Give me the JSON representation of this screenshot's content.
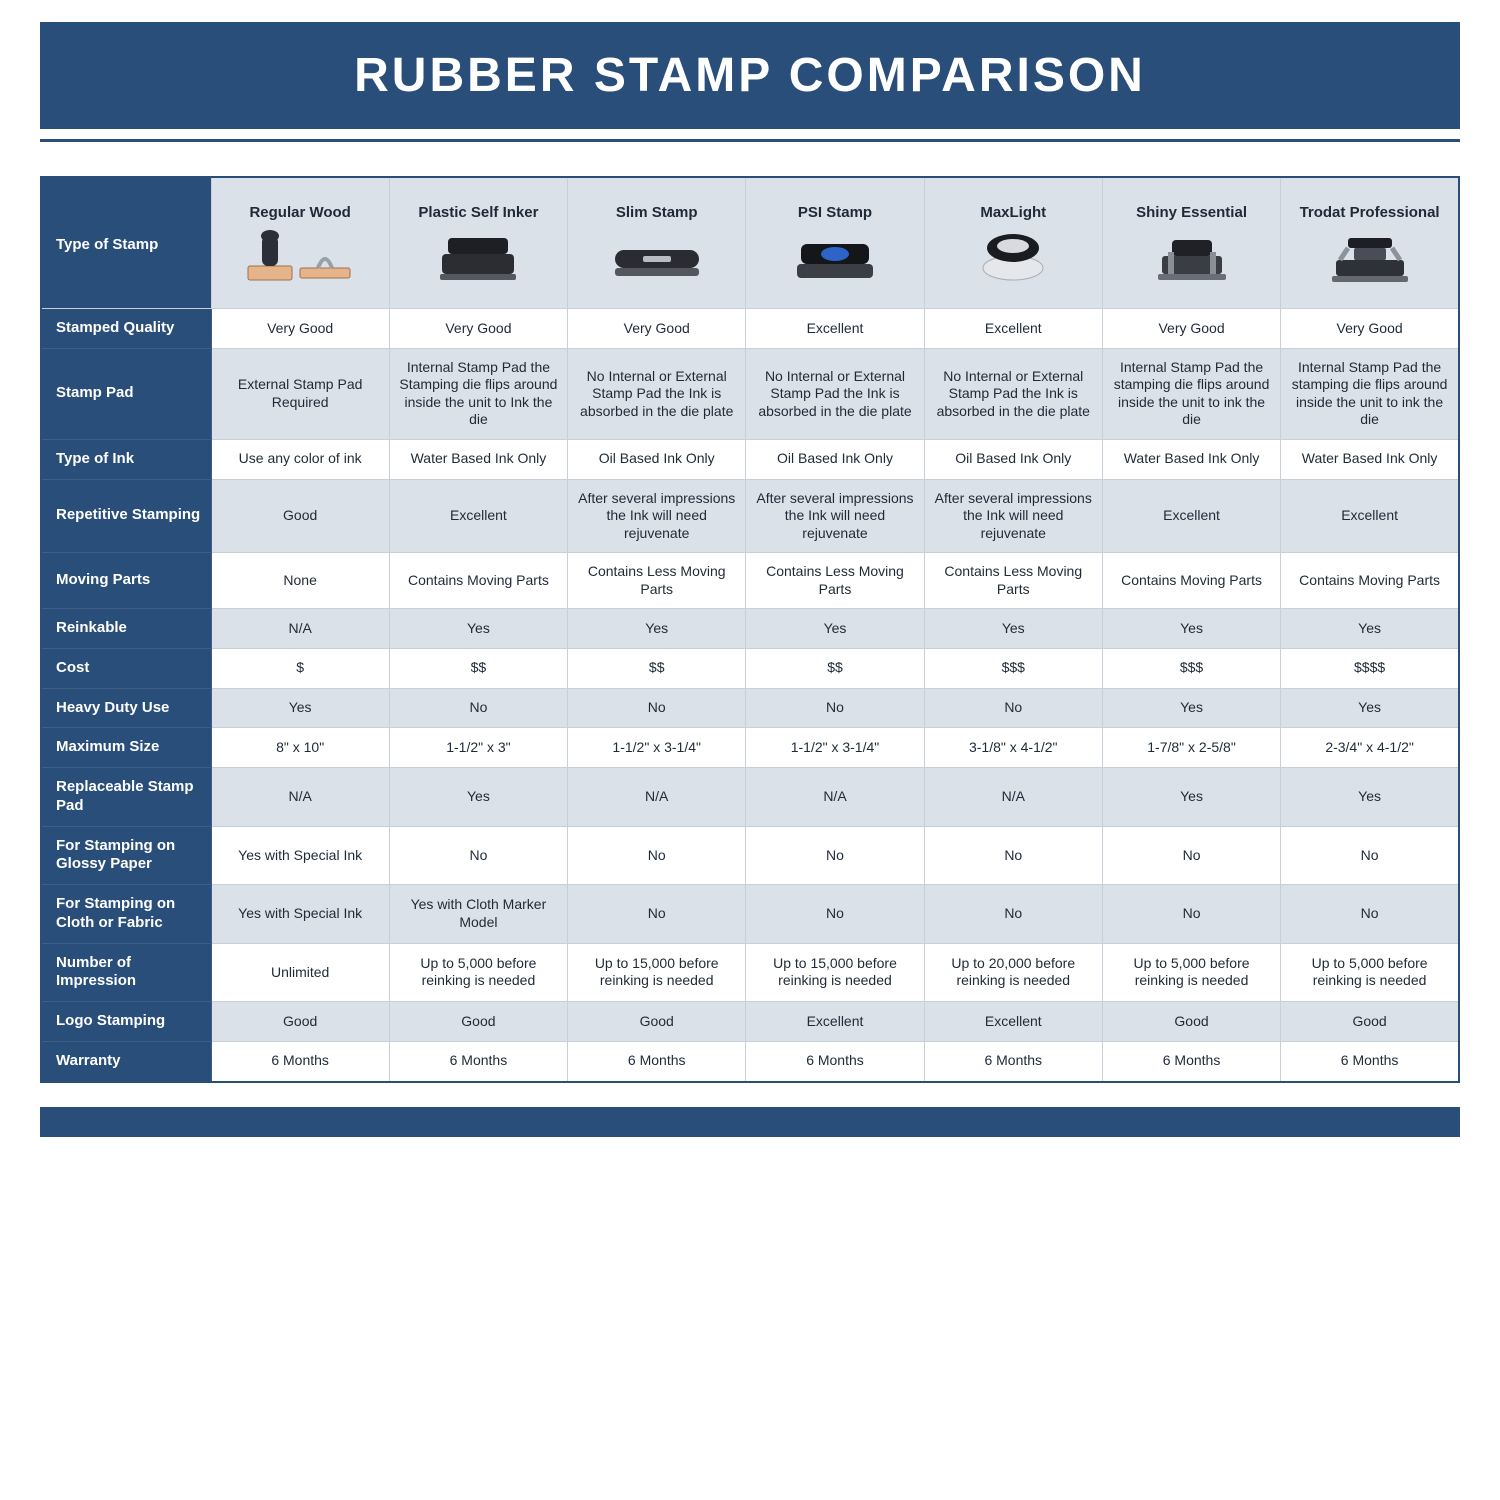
{
  "title": "RUBBER STAMP COMPARISON",
  "colors": {
    "navy": "#294e79",
    "row_alt": "#dbe1e8",
    "row_white": "#ffffff",
    "cell_border": "#c9cfd6",
    "text": "#1f2a37"
  },
  "table": {
    "corner_label": "Type of Stamp",
    "columns": [
      "Regular Wood",
      "Plastic Self Inker",
      "Slim Stamp",
      "PSI Stamp",
      "MaxLight",
      "Shiny Essential",
      "Trodat Professional"
    ],
    "rows": [
      {
        "label": "Stamped Quality",
        "alt": false,
        "cells": [
          "Very Good",
          "Very Good",
          "Very Good",
          "Excellent",
          "Excellent",
          "Very Good",
          "Very Good"
        ]
      },
      {
        "label": "Stamp Pad",
        "alt": true,
        "small": true,
        "cells": [
          "External Stamp Pad Required",
          "Internal Stamp Pad the Stamping die flips around inside the unit to Ink the die",
          "No Internal or External Stamp Pad the Ink is absorbed in the die plate",
          "No Internal or External Stamp Pad the Ink is absorbed in the die plate",
          "No Internal or External Stamp Pad the Ink is absorbed in the die plate",
          "Internal Stamp Pad the stamping die flips around inside the unit to ink the die",
          "Internal Stamp Pad the stamping die flips around inside the unit to ink the die"
        ]
      },
      {
        "label": "Type of Ink",
        "alt": false,
        "cells": [
          "Use any color of ink",
          "Water Based Ink Only",
          "Oil Based Ink Only",
          "Oil Based Ink Only",
          "Oil Based Ink Only",
          "Water Based Ink Only",
          "Water Based Ink Only"
        ]
      },
      {
        "label": "Repetitive Stamping",
        "alt": true,
        "small": true,
        "cells": [
          "Good",
          "Excellent",
          "After several impressions the Ink will need rejuvenate",
          "After several impressions the Ink will need rejuvenate",
          "After several impressions the Ink will need rejuvenate",
          "Excellent",
          "Excellent"
        ]
      },
      {
        "label": "Moving Parts",
        "alt": false,
        "cells": [
          "None",
          "Contains Moving Parts",
          "Contains Less Moving Parts",
          "Contains Less Moving Parts",
          "Contains Less Moving Parts",
          "Contains Moving Parts",
          "Contains Moving Parts"
        ]
      },
      {
        "label": "Reinkable",
        "alt": true,
        "cells": [
          "N/A",
          "Yes",
          "Yes",
          "Yes",
          "Yes",
          "Yes",
          "Yes"
        ]
      },
      {
        "label": "Cost",
        "alt": false,
        "cells": [
          "$",
          "$$",
          "$$",
          "$$",
          "$$$",
          "$$$",
          "$$$$"
        ]
      },
      {
        "label": "Heavy Duty Use",
        "alt": true,
        "cells": [
          "Yes",
          "No",
          "No",
          "No",
          "No",
          "Yes",
          "Yes"
        ]
      },
      {
        "label": "Maximum Size",
        "alt": false,
        "cells": [
          "8\" x 10\"",
          "1-1/2\" x 3\"",
          "1-1/2\" x 3-1/4\"",
          "1-1/2\" x 3-1/4\"",
          "3-1/8\" x 4-1/2\"",
          "1-7/8\" x 2-5/8\"",
          "2-3/4\" x 4-1/2\""
        ]
      },
      {
        "label": "Replaceable Stamp Pad",
        "alt": true,
        "cells": [
          "N/A",
          "Yes",
          "N/A",
          "N/A",
          "N/A",
          "Yes",
          "Yes"
        ]
      },
      {
        "label": "For Stamping on Glossy Paper",
        "alt": false,
        "cells": [
          "Yes with Special Ink",
          "No",
          "No",
          "No",
          "No",
          "No",
          "No"
        ]
      },
      {
        "label": "For Stamping on Cloth or Fabric",
        "alt": true,
        "cells": [
          "Yes with Special Ink",
          "Yes with Cloth Marker Model",
          "No",
          "No",
          "No",
          "No",
          "No"
        ]
      },
      {
        "label": "Number of Impression",
        "alt": false,
        "small": true,
        "cells": [
          "Unlimited",
          "Up to 5,000 before reinking is needed",
          "Up to 15,000 before reinking is needed",
          "Up to 15,000 before reinking is needed",
          "Up to 20,000 before reinking is needed",
          "Up to 5,000 before reinking is needed",
          "Up to 5,000 before reinking is needed"
        ]
      },
      {
        "label": "Logo Stamping",
        "alt": true,
        "cells": [
          "Good",
          "Good",
          "Good",
          "Excellent",
          "Excellent",
          "Good",
          "Good"
        ]
      },
      {
        "label": "Warranty",
        "alt": false,
        "cells": [
          "6 Months",
          "6 Months",
          "6 Months",
          "6 Months",
          "6 Months",
          "6 Months",
          "6 Months"
        ]
      }
    ],
    "stamp_icons": [
      "wood-stamp",
      "self-inker",
      "slim-stamp",
      "psi-stamp",
      "maxlight-stamp",
      "shiny-essential",
      "trodat-professional"
    ]
  }
}
